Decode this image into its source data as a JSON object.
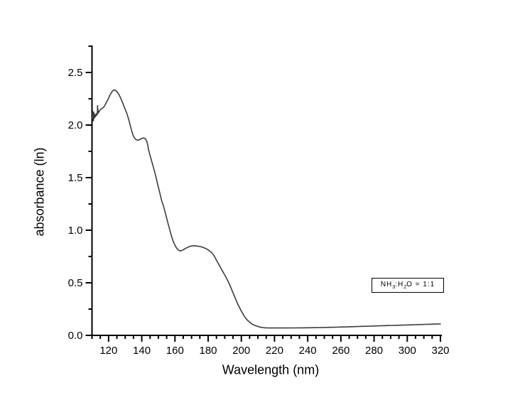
{
  "window": {
    "background": "#ffffff"
  },
  "chart_data": {
    "type": "line",
    "title": "",
    "xlabel": "Wavelength (nm)",
    "ylabel": "absorbance (ln)",
    "xlim": [
      110,
      320
    ],
    "ylim": [
      0,
      2.75
    ],
    "grid": false,
    "x_major_ticks": [
      120,
      140,
      160,
      180,
      200,
      220,
      240,
      260,
      280,
      300,
      320
    ],
    "x_minor_step": 5,
    "y_major_ticks": [
      0,
      0.5,
      1,
      1.5,
      2,
      2.5
    ],
    "y_major_labels": [
      "0.0",
      "0.5",
      "1.0",
      "1.5",
      "2.0",
      "2.5"
    ],
    "y_minor_step": 0.25,
    "colors": {
      "curve": "#3c3c3c",
      "axis": "#000000",
      "text": "#000000"
    },
    "legend": {
      "text": "NH3:H2O = 1:1",
      "parts": [
        [
          "t",
          "NH"
        ],
        [
          "s",
          "3"
        ],
        [
          "t",
          ":H"
        ],
        [
          "s",
          "2"
        ],
        [
          "t",
          "O = 1:1"
        ]
      ],
      "position": "right-middle"
    },
    "series": [
      {
        "name": "NH3:H2O = 1:1",
        "points": [
          [
            110.2,
            2.06
          ],
          [
            110.35,
            2.11
          ],
          [
            110.5,
            2.13
          ],
          [
            110.65,
            2.07
          ],
          [
            110.8,
            2.04
          ],
          [
            110.95,
            2.1
          ],
          [
            111.1,
            2.12
          ],
          [
            111.25,
            2.06
          ],
          [
            111.4,
            2.105
          ],
          [
            111.6,
            2.07
          ],
          [
            111.8,
            2.095
          ],
          [
            112.0,
            2.08
          ],
          [
            112.2,
            2.1
          ],
          [
            112.4,
            2.085
          ],
          [
            112.6,
            2.105
          ],
          [
            112.8,
            2.095
          ],
          [
            113.0,
            2.115
          ],
          [
            113.2,
            2.1
          ],
          [
            113.4,
            2.185
          ],
          [
            113.6,
            2.125
          ],
          [
            113.8,
            2.115
          ],
          [
            114.0,
            2.13
          ],
          [
            114.3,
            2.125
          ],
          [
            114.6,
            2.14
          ],
          [
            115.0,
            2.145
          ],
          [
            115.4,
            2.15
          ],
          [
            115.8,
            2.155
          ],
          [
            116.2,
            2.16
          ],
          [
            116.6,
            2.165
          ],
          [
            117.0,
            2.17
          ],
          [
            117.5,
            2.18
          ],
          [
            118.0,
            2.195
          ],
          [
            118.5,
            2.21
          ],
          [
            119.0,
            2.225
          ],
          [
            119.5,
            2.24
          ],
          [
            120.0,
            2.255
          ],
          [
            120.5,
            2.275
          ],
          [
            121.0,
            2.29
          ],
          [
            121.5,
            2.305
          ],
          [
            122.0,
            2.315
          ],
          [
            122.5,
            2.325
          ],
          [
            123.0,
            2.332
          ],
          [
            123.5,
            2.335
          ],
          [
            124.0,
            2.33
          ],
          [
            124.5,
            2.325
          ],
          [
            125.0,
            2.318
          ],
          [
            125.5,
            2.308
          ],
          [
            126.0,
            2.296
          ],
          [
            126.5,
            2.282
          ],
          [
            127.0,
            2.266
          ],
          [
            127.5,
            2.248
          ],
          [
            128.0,
            2.23
          ],
          [
            128.5,
            2.21
          ],
          [
            129.0,
            2.19
          ],
          [
            129.5,
            2.17
          ],
          [
            130.0,
            2.15
          ],
          [
            130.5,
            2.13
          ],
          [
            131.0,
            2.11
          ],
          [
            131.5,
            2.085
          ],
          [
            132.0,
            2.06
          ],
          [
            132.5,
            2.03
          ],
          [
            133.0,
            2.0
          ],
          [
            133.5,
            1.97
          ],
          [
            134.0,
            1.94
          ],
          [
            134.5,
            1.915
          ],
          [
            135.0,
            1.895
          ],
          [
            135.5,
            1.88
          ],
          [
            136.0,
            1.87
          ],
          [
            136.5,
            1.862
          ],
          [
            137.0,
            1.858
          ],
          [
            137.5,
            1.856
          ],
          [
            138.0,
            1.857
          ],
          [
            138.5,
            1.86
          ],
          [
            139.0,
            1.864
          ],
          [
            139.5,
            1.868
          ],
          [
            140.0,
            1.872
          ],
          [
            140.5,
            1.875
          ],
          [
            141.0,
            1.877
          ],
          [
            141.5,
            1.876
          ],
          [
            142.0,
            1.871
          ],
          [
            142.5,
            1.862
          ],
          [
            143.0,
            1.845
          ],
          [
            143.5,
            1.822
          ],
          [
            144.0,
            1.77
          ],
          [
            145.0,
            1.71
          ],
          [
            146.0,
            1.655
          ],
          [
            147.0,
            1.6
          ],
          [
            148.0,
            1.54
          ],
          [
            149.0,
            1.475
          ],
          [
            150.0,
            1.41
          ],
          [
            151.0,
            1.345
          ],
          [
            152.0,
            1.28
          ],
          [
            153.0,
            1.235
          ],
          [
            154.0,
            1.175
          ],
          [
            155.0,
            1.115
          ],
          [
            156.0,
            1.055
          ],
          [
            157.0,
            0.995
          ],
          [
            158.0,
            0.94
          ],
          [
            159.0,
            0.893
          ],
          [
            160.0,
            0.857
          ],
          [
            161.0,
            0.83
          ],
          [
            162.0,
            0.812
          ],
          [
            163.0,
            0.804
          ],
          [
            164.0,
            0.806
          ],
          [
            164.5,
            0.81
          ],
          [
            165.0,
            0.813
          ],
          [
            166.0,
            0.824
          ],
          [
            167.0,
            0.832
          ],
          [
            168.0,
            0.84
          ],
          [
            169.0,
            0.846
          ],
          [
            170.0,
            0.85
          ],
          [
            171.0,
            0.852
          ],
          [
            171.5,
            0.853
          ],
          [
            172.0,
            0.852
          ],
          [
            173.0,
            0.85
          ],
          [
            174.0,
            0.848
          ],
          [
            175.0,
            0.845
          ],
          [
            176.0,
            0.841
          ],
          [
            177.0,
            0.836
          ],
          [
            178.0,
            0.83
          ],
          [
            179.0,
            0.822
          ],
          [
            180.0,
            0.813
          ],
          [
            181.0,
            0.802
          ],
          [
            182.0,
            0.788
          ],
          [
            183.0,
            0.77
          ],
          [
            184.0,
            0.746
          ],
          [
            185.0,
            0.716
          ],
          [
            186.0,
            0.688
          ],
          [
            187.0,
            0.659
          ],
          [
            188.0,
            0.63
          ],
          [
            189.0,
            0.602
          ],
          [
            190.0,
            0.574
          ],
          [
            191.0,
            0.545
          ],
          [
            192.0,
            0.514
          ],
          [
            193.0,
            0.48
          ],
          [
            194.0,
            0.443
          ],
          [
            195.0,
            0.405
          ],
          [
            196.0,
            0.367
          ],
          [
            197.0,
            0.33
          ],
          [
            198.0,
            0.294
          ],
          [
            199.0,
            0.262
          ],
          [
            200.0,
            0.232
          ],
          [
            201.0,
            0.203
          ],
          [
            202.0,
            0.177
          ],
          [
            203.0,
            0.156
          ],
          [
            204.0,
            0.14
          ],
          [
            205.0,
            0.126
          ],
          [
            206.0,
            0.113
          ],
          [
            207.0,
            0.103
          ],
          [
            208.0,
            0.096
          ],
          [
            209.0,
            0.09
          ],
          [
            210.0,
            0.085
          ],
          [
            211.0,
            0.08
          ],
          [
            212.0,
            0.0765
          ],
          [
            213.0,
            0.074
          ],
          [
            214.0,
            0.0725
          ],
          [
            215.0,
            0.0715
          ],
          [
            216.0,
            0.071
          ],
          [
            217.5,
            0.0705
          ],
          [
            219.0,
            0.0702
          ],
          [
            220.5,
            0.0703
          ],
          [
            222.0,
            0.0706
          ],
          [
            223.5,
            0.0702
          ],
          [
            225.0,
            0.0705
          ],
          [
            226.5,
            0.0708
          ],
          [
            228.0,
            0.0704
          ],
          [
            229.5,
            0.0707
          ],
          [
            231.0,
            0.071
          ],
          [
            233.0,
            0.0712
          ],
          [
            235.0,
            0.0714
          ],
          [
            237.0,
            0.0717
          ],
          [
            239.0,
            0.0721
          ],
          [
            241.0,
            0.0726
          ],
          [
            243.0,
            0.0731
          ],
          [
            245.0,
            0.0737
          ],
          [
            247.0,
            0.0743
          ],
          [
            249.0,
            0.075
          ],
          [
            251.0,
            0.0757
          ],
          [
            253.0,
            0.0764
          ],
          [
            255.0,
            0.0772
          ],
          [
            257.0,
            0.078
          ],
          [
            259.0,
            0.0789
          ],
          [
            261.0,
            0.0798
          ],
          [
            263.0,
            0.0807
          ],
          [
            265.0,
            0.0816
          ],
          [
            267.0,
            0.0826
          ],
          [
            269.0,
            0.0836
          ],
          [
            271.0,
            0.0846
          ],
          [
            273.0,
            0.0856
          ],
          [
            275.0,
            0.0866
          ],
          [
            277.0,
            0.0876
          ],
          [
            279.0,
            0.0886
          ],
          [
            281.0,
            0.0896
          ],
          [
            283.0,
            0.0906
          ],
          [
            285.0,
            0.0916
          ],
          [
            287.0,
            0.0926
          ],
          [
            289.0,
            0.0936
          ],
          [
            291.0,
            0.0946
          ],
          [
            293.0,
            0.0956
          ],
          [
            295.0,
            0.0966
          ],
          [
            297.0,
            0.0976
          ],
          [
            299.0,
            0.0986
          ],
          [
            301.0,
            0.0996
          ],
          [
            303.0,
            0.1006
          ],
          [
            305.0,
            0.1016
          ],
          [
            307.0,
            0.1026
          ],
          [
            309.0,
            0.1036
          ],
          [
            311.0,
            0.1046
          ],
          [
            313.0,
            0.1056
          ],
          [
            315.0,
            0.1066
          ],
          [
            317.0,
            0.1076
          ],
          [
            319.0,
            0.1086
          ],
          [
            320.0,
            0.109
          ]
        ]
      }
    ]
  }
}
